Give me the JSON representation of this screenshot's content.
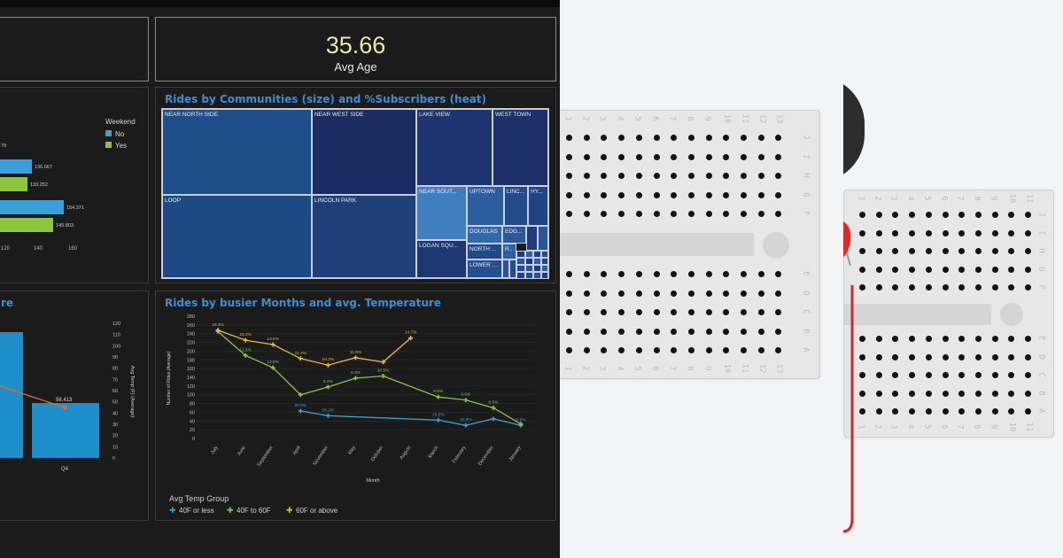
{
  "kpi": {
    "value": "35.66",
    "label": "Avg Age"
  },
  "weekend_chart": {
    "legend_title": "Weekend",
    "legend": [
      {
        "name": "No",
        "color": "#3b9fd8"
      },
      {
        "name": "Yes",
        "color": "#8cc63f"
      }
    ],
    "value_labels": [
      "79",
      "136.667",
      "133.252",
      "154.371",
      "145.803"
    ],
    "ticks": [
      "120",
      "140",
      "160"
    ]
  },
  "treemap": {
    "title": "Rides by Communities (size) and %Subscribers (heat)",
    "cells": [
      {
        "label": "NEAR NORTH SIDE",
        "color": "#1d4e8a"
      },
      {
        "label": "NEAR WEST SIDE",
        "color": "#1b2c63"
      },
      {
        "label": "LAKE VIEW",
        "color": "#1e3470"
      },
      {
        "label": "WEST TOWN",
        "color": "#1d3068"
      },
      {
        "label": "LOOP",
        "color": "#1d4a84"
      },
      {
        "label": "LINCOLN PARK",
        "color": "#1f3f78"
      },
      {
        "label": "NEAR SOUT...",
        "color": "#3f7fc0"
      },
      {
        "label": "UPTOWN",
        "color": "#2a5e9f"
      },
      {
        "label": "LINC...",
        "color": "#234a8a"
      },
      {
        "label": "HY...",
        "color": "#1e4583"
      },
      {
        "label": "DOUGLAS",
        "color": "#2e6aac"
      },
      {
        "label": "EDG...",
        "color": "#2a5898"
      },
      {
        "label": "LOGAN SQU...",
        "color": "#1c3772"
      },
      {
        "label": "NORTH ...",
        "color": "#1f4a8a"
      },
      {
        "label": "R...",
        "color": "#2b5fa0"
      },
      {
        "label": "LOWER ...",
        "color": "#24508f"
      }
    ]
  },
  "quarter_chart": {
    "title_fragment": "re",
    "right_ticks": [
      "0",
      "10",
      "20",
      "30",
      "40",
      "50",
      "60",
      "70",
      "80",
      "90",
      "100",
      "110",
      "120"
    ],
    "right_axis_label": "Avg Temp (F) (Average)",
    "value_label": "56.413",
    "x_label": "Q4"
  },
  "months_chart": {
    "title": "Rides by busier Months and avg. Temperature",
    "legend_title": "Avg Temp Group",
    "legend_symbol": "✚",
    "chart_data": {
      "type": "line",
      "xlabel": "Month",
      "ylabel": "Number of Rides (Average)",
      "ylim": [
        0,
        280
      ],
      "yticks": [
        0,
        20,
        40,
        60,
        80,
        100,
        120,
        140,
        160,
        180,
        200,
        220,
        240,
        260,
        280
      ],
      "categories": [
        "July",
        "June",
        "September",
        "April",
        "November",
        "May",
        "October",
        "August",
        "March",
        "February",
        "December",
        "January"
      ],
      "series": [
        {
          "name": "40F or less",
          "color": "#3b9fd8",
          "values": [
            null,
            null,
            null,
            63,
            52,
            null,
            null,
            null,
            42,
            30,
            45,
            30
          ],
          "labels": [
            null,
            null,
            null,
            "20.9%",
            "20.2%",
            null,
            null,
            null,
            "15.8%",
            "10.8%",
            null,
            "5.5%"
          ]
        },
        {
          "name": "40F to 60F",
          "color": "#8cc63f",
          "values": [
            245,
            190,
            162,
            100,
            118,
            138,
            143,
            null,
            95,
            88,
            70,
            33
          ],
          "labels": [
            null,
            "12.5%",
            "13.8%",
            null,
            "8.2%",
            "9.3%",
            "10.5%",
            null,
            "6.8%",
            "6.6%",
            "6.5%",
            null
          ]
        },
        {
          "name": "60F or above",
          "color": "#e8b830",
          "values": [
            248,
            225,
            215,
            183,
            168,
            185,
            175,
            230,
            null,
            null,
            null,
            null
          ],
          "labels": [
            "19.3%",
            "15.4%",
            "13.5%",
            "11.4%",
            "10.3%",
            "11.5%",
            null,
            "14.7%",
            null,
            null,
            null,
            null
          ]
        }
      ]
    }
  },
  "breadboard": {
    "row_letters_top": [
      "J",
      "I",
      "H",
      "G",
      "F"
    ],
    "row_letters_bottom": [
      "E",
      "D",
      "C",
      "B",
      "A"
    ],
    "column_numbers": [
      "1",
      "2",
      "3",
      "4",
      "5",
      "6",
      "7",
      "8",
      "9",
      "10",
      "11",
      "12",
      "13",
      "14",
      "15",
      "16",
      "17"
    ]
  },
  "colors": {
    "dashboard_bg": "#1b1b1c",
    "title_blue": "#3a8ed8",
    "kpi_border": "#b8862a",
    "board": "#e7e7e7",
    "led_red": "#e0282b",
    "wire_red": "#d8262a"
  }
}
